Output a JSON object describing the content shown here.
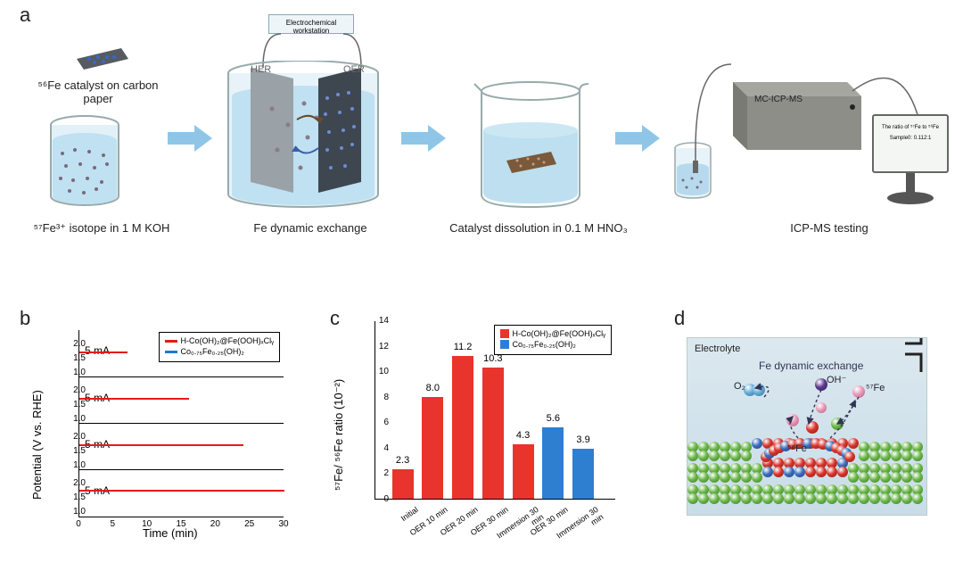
{
  "labels": {
    "a": "a",
    "b": "b",
    "c": "c",
    "d": "d"
  },
  "panelA": {
    "stage1_top": "⁵⁶Fe catalyst on carbon paper",
    "stage1_bot": "⁵⁷Fe³⁺ isotope in 1 M KOH",
    "stage2_box": "Electrochemical workstation",
    "stage2_her": "HER",
    "stage2_oer": "OER",
    "stage2_cap": "Fe dynamic exchange",
    "stage3_cap": "Catalyst dissolution in 0.1 M HNO₃",
    "stage4_device": "MC-ICP-MS",
    "stage4_screen1": "The ratio of ⁵⁷Fe to ⁵⁶Fe",
    "stage4_screen2": "Sample0: 0.112:1",
    "stage4_cap": "ICP-MS testing",
    "arrow_color": "#8fc6e8",
    "koh_color": "#bfe1f2",
    "electrode_gray": "#9aa1a7",
    "electrode_dark": "#3e4650",
    "paper_color": "#555b61",
    "device_color": "#8e8e88"
  },
  "panelB": {
    "ylabel": "Potential (V vs. RHE)",
    "xlabel": "Time (min)",
    "xticks": [
      0,
      5,
      10,
      15,
      20,
      25,
      30
    ],
    "row_yticks": [
      "1.0",
      "1.5",
      "2.0"
    ],
    "row_label": "5 mA",
    "legend": [
      {
        "label": "H-Co(OH)₂@Fe(OOH)ₓClᵧ",
        "color": "#e11b1b"
      },
      {
        "label": "Co₀.₇₅Fe₀.₂₅(OH)₂",
        "color": "#1f77d4"
      }
    ],
    "rows": [
      {
        "xmax": 7,
        "y": 1.55,
        "color": "#e11b1b"
      },
      {
        "xmax": 16,
        "y": 1.57,
        "color": "#e11b1b"
      },
      {
        "xmax": 24,
        "y": 1.58,
        "color": "#e11b1b"
      },
      {
        "xmax": 30,
        "y": 1.6,
        "color": "#1f77d4",
        "second": {
          "xmax": 30,
          "y": 1.62,
          "color": "#e11b1b"
        }
      }
    ],
    "ylim": [
      0.8,
      2.2
    ],
    "xlim": [
      0,
      30
    ]
  },
  "panelC": {
    "ylabel": "⁵⁷Fe/ ⁵⁶Fe ratio (10⁻²)",
    "ylim": [
      0,
      14
    ],
    "ytick_step": 2,
    "legend": [
      {
        "label": "H-Co(OH)₂@Fe(OOH)ₓClᵧ",
        "color": "#e8342c"
      },
      {
        "label": "Co₀.₇₅Fe₀.₂₅(OH)₂",
        "color": "#2f7fd1"
      }
    ],
    "bars": [
      {
        "cat": "Initial",
        "val": 2.3,
        "color": "#e8342c"
      },
      {
        "cat": "OER 10 min",
        "val": 8.0,
        "color": "#e8342c"
      },
      {
        "cat": "OER 20 min",
        "val": 11.2,
        "color": "#e8342c"
      },
      {
        "cat": "OER 30 min",
        "val": 10.3,
        "color": "#e8342c"
      },
      {
        "cat": "Immersion 30 min",
        "val": 4.3,
        "color": "#e8342c"
      },
      {
        "cat": "OER 30 min",
        "val": 5.6,
        "color": "#2f7fd1"
      },
      {
        "cat": "Immersion 30 min",
        "val": 3.9,
        "color": "#2f7fd1"
      }
    ]
  },
  "panelD": {
    "box_title": "Electrolyte",
    "subtitle": "Fe dynamic exchange",
    "o2_label": "O₂",
    "oh_label": "OH⁻",
    "fe57_label": "⁵⁷Fe",
    "fe56_label": "⁵⁶Fe",
    "colors": {
      "green_ball": "#6db84a",
      "green_edge": "#3d7a25",
      "red_ball": "#d9352c",
      "red_edge": "#8b1d17",
      "blue_ball": "#3d6fbf",
      "pink_ball": "#e89bb9",
      "violet_ball": "#5d3a90",
      "o2_ball": "#68b0d8"
    }
  }
}
